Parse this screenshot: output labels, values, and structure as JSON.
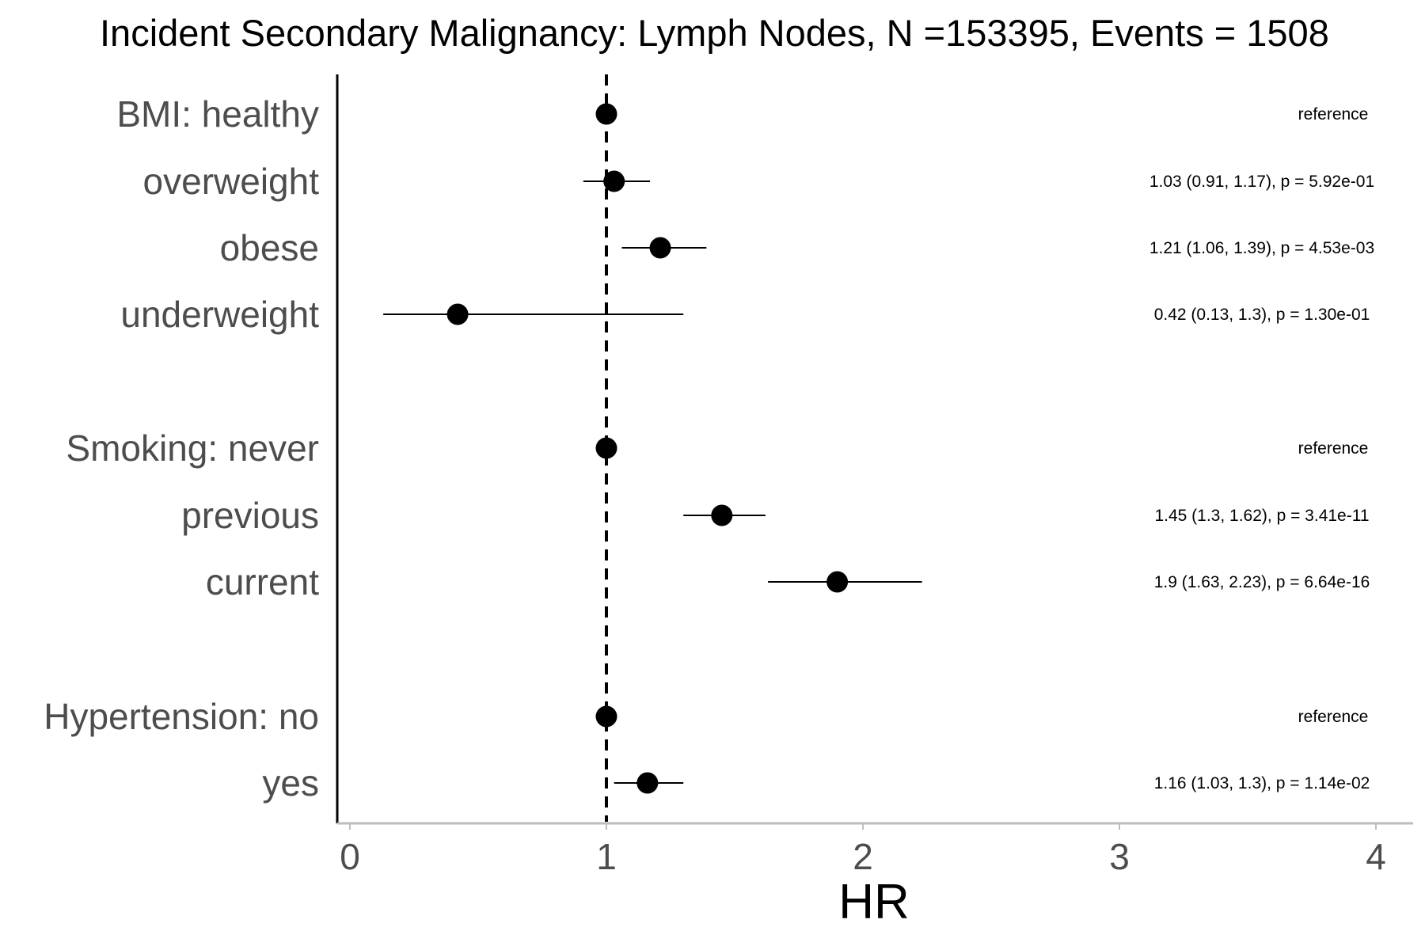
{
  "chart_data": {
    "type": "forest",
    "title": "Incident Secondary Malignancy: Lymph Nodes, N =153395, Events = 1508",
    "xlabel": "HR",
    "xlim": [
      0,
      4
    ],
    "x_ticks": [
      "0",
      "1",
      "2",
      "3",
      "4"
    ],
    "reference_line": 1,
    "rows": [
      {
        "label": "BMI: healthy",
        "hr": 1.0,
        "lo": null,
        "hi": null,
        "text": "reference"
      },
      {
        "label": "overweight",
        "hr": 1.03,
        "lo": 0.91,
        "hi": 1.17,
        "text": "1.03 (0.91, 1.17), p = 5.92e-01"
      },
      {
        "label": "obese",
        "hr": 1.21,
        "lo": 1.06,
        "hi": 1.39,
        "text": "1.21 (1.06, 1.39), p = 4.53e-03"
      },
      {
        "label": "underweight",
        "hr": 0.42,
        "lo": 0.13,
        "hi": 1.3,
        "text": "0.42 (0.13, 1.3), p = 1.30e-01"
      },
      {
        "label": "Smoking: never",
        "hr": 1.0,
        "lo": null,
        "hi": null,
        "text": "reference"
      },
      {
        "label": "previous",
        "hr": 1.45,
        "lo": 1.3,
        "hi": 1.62,
        "text": "1.45 (1.3, 1.62), p = 3.41e-11"
      },
      {
        "label": "current",
        "hr": 1.9,
        "lo": 1.63,
        "hi": 2.23,
        "text": "1.9 (1.63, 2.23), p = 6.64e-16"
      },
      {
        "label": "Hypertension: no",
        "hr": 1.0,
        "lo": null,
        "hi": null,
        "text": "reference"
      },
      {
        "label": "yes",
        "hr": 1.16,
        "lo": 1.03,
        "hi": 1.3,
        "text": "1.16 (1.03, 1.3), p = 1.14e-02"
      }
    ],
    "groups": [
      {
        "name": "BMI",
        "rows": [
          0,
          1,
          2,
          3
        ]
      },
      {
        "name": "Smoking",
        "rows": [
          4,
          5,
          6
        ]
      },
      {
        "name": "Hypertension",
        "rows": [
          7,
          8
        ]
      }
    ],
    "colors": {
      "point": "#000000",
      "label": "#4d4d4d",
      "axis": "#bdbdbd"
    }
  }
}
